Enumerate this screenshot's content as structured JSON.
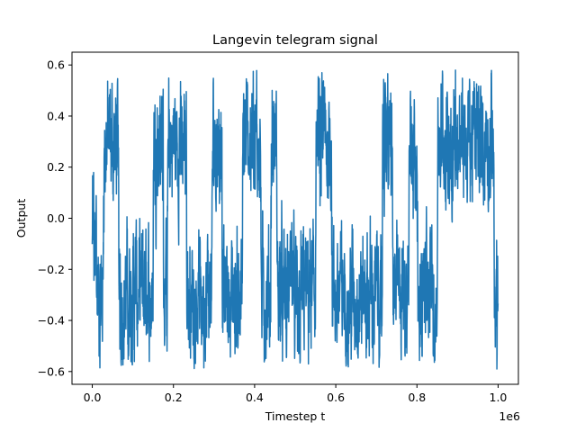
{
  "chart_data": {
    "type": "line",
    "title": "Langevin telegram signal",
    "xlabel": "Timestep t",
    "ylabel": "Output",
    "x_offset_label": "1e6",
    "xlim": [
      -50000,
      1050000
    ],
    "ylim": [
      -0.65,
      0.65
    ],
    "x_ticks": [
      0,
      200000,
      400000,
      600000,
      800000,
      1000000
    ],
    "x_tick_labels": [
      "0.0",
      "0.2",
      "0.4",
      "0.6",
      "0.8",
      "1.0"
    ],
    "y_ticks": [
      -0.6,
      -0.4,
      -0.2,
      0.0,
      0.2,
      0.4,
      0.6
    ],
    "y_tick_labels": [
      "−0.6",
      "−0.4",
      "−0.2",
      "0.0",
      "0.2",
      "0.4",
      "0.6"
    ],
    "grid": false,
    "series": [
      {
        "color": "#1f77b4",
        "x_start": 0,
        "x_end": 1000000,
        "level_high": 0.3,
        "level_low": -0.3,
        "states": [
          {
            "start": 0,
            "end": 10000,
            "state": "mixed"
          },
          {
            "start": 10000,
            "end": 27000,
            "state": "low"
          },
          {
            "start": 27000,
            "end": 65000,
            "state": "high"
          },
          {
            "start": 65000,
            "end": 150000,
            "state": "low"
          },
          {
            "start": 150000,
            "end": 175000,
            "state": "high"
          },
          {
            "start": 175000,
            "end": 185000,
            "state": "low"
          },
          {
            "start": 185000,
            "end": 232000,
            "state": "high"
          },
          {
            "start": 232000,
            "end": 295000,
            "state": "low"
          },
          {
            "start": 295000,
            "end": 320000,
            "state": "high"
          },
          {
            "start": 320000,
            "end": 370000,
            "state": "low"
          },
          {
            "start": 370000,
            "end": 415000,
            "state": "high"
          },
          {
            "start": 415000,
            "end": 440000,
            "state": "low"
          },
          {
            "start": 440000,
            "end": 455000,
            "state": "high"
          },
          {
            "start": 455000,
            "end": 550000,
            "state": "low"
          },
          {
            "start": 550000,
            "end": 590000,
            "state": "high"
          },
          {
            "start": 590000,
            "end": 715000,
            "state": "low"
          },
          {
            "start": 715000,
            "end": 740000,
            "state": "high"
          },
          {
            "start": 740000,
            "end": 780000,
            "state": "low"
          },
          {
            "start": 780000,
            "end": 800000,
            "state": "high"
          },
          {
            "start": 800000,
            "end": 850000,
            "state": "low"
          },
          {
            "start": 850000,
            "end": 990000,
            "state": "high"
          },
          {
            "start": 990000,
            "end": 1000000,
            "state": "low"
          }
        ],
        "min_value": -0.59,
        "max_value": 0.58
      }
    ]
  }
}
